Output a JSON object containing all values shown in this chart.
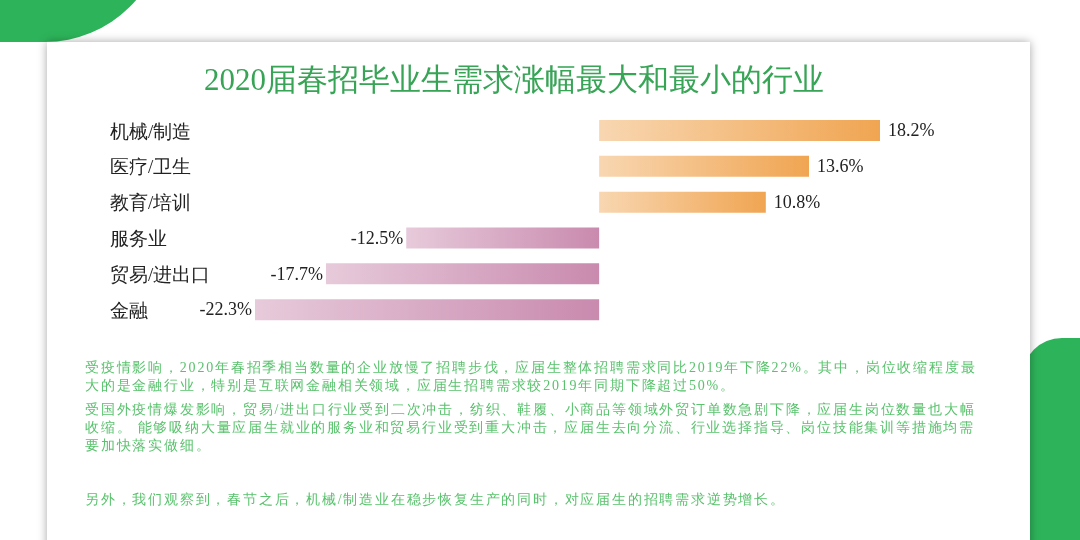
{
  "chart_data": {
    "type": "bar",
    "orientation": "horizontal",
    "title": "2020届春招毕业生需求涨幅最大和最小的行业",
    "categories": [
      "机械/制造",
      "医疗/卫生",
      "教育/培训",
      "服务业",
      "贸易/进出口",
      "金融"
    ],
    "values": [
      18.2,
      13.6,
      10.8,
      -12.5,
      -17.7,
      -22.3
    ],
    "colors": [
      "#f0a552",
      "#f0a552",
      "#f0a552",
      "#c98aae",
      "#c98aae",
      "#c98aae"
    ],
    "value_labels": [
      "18.2%",
      "13.6%",
      "10.8%",
      "-12.5%",
      "-17.7%",
      "-22.3%"
    ],
    "tick_labels": "y",
    "annotations": [
      "受疫情影响，2020年春招季相当数量的企业放慢了招聘步伐，应届生整体招聘需求同比2019年下降22%。其中，岗位收缩程度最大的是金融行业，特别是互联网金融相关领域，应届生招聘需求较2019年同期下降超过50%。",
      "受国外疫情爆发影响，贸易/进出口行业受到二次冲击，纺织、鞋履、小商品等领域外贸订单数急剧下降，应届生岗位数量也大幅收缩。 能够吸纳大量应届生就业的服务业和贸易行业受到重大冲击，应届生去向分流、行业选择指导、岗位技能集训等措施均需要加快落实做细。",
      "另外，我们观察到，春节之后，机械/制造业在稳步恢复生产的同时，对应届生的招聘需求逆势增长。"
    ]
  }
}
